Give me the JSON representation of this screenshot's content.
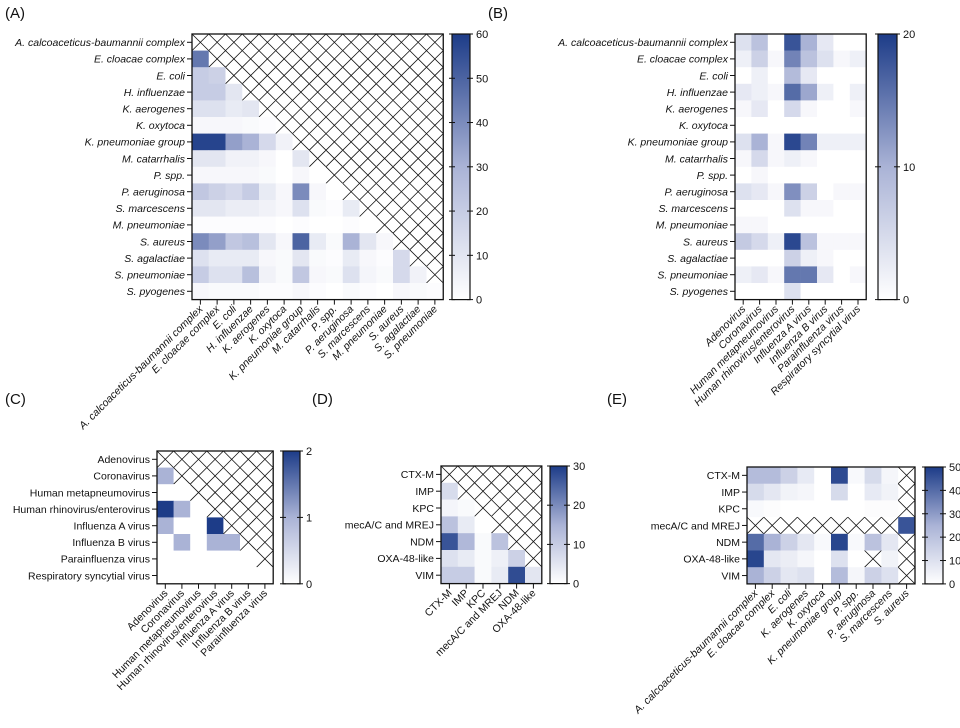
{
  "colormap": [
    "#ffffff",
    "#aab3d6",
    "#1d3c88"
  ],
  "chart_data": [
    {
      "type": "heatmap",
      "title": "(A)",
      "italic_labels": true,
      "rows": [
        "A. calcoaceticus-baumannii complex",
        "E. cloacae complex",
        "E. coli",
        "H. influenzae",
        "K. aerogenes",
        "K. oxytoca",
        "K. pneumoniae group",
        "M. catarrhalis",
        "P. spp.",
        "P. aeruginosa",
        "S. marcescens",
        "M. pneumoniae",
        "S. aureus",
        "S. agalactiae",
        "S. pneumoniae",
        "S. pyogenes"
      ],
      "columns": [
        "A. calcoaceticus-baumannii complex",
        "E. cloacae complex",
        "E. coli",
        "H. influenzae",
        "K. aerogenes",
        "K. oxytoca",
        "K. pneumoniae group",
        "M. catarrhalis",
        "P. spp.",
        "P. aeruginosa",
        "S. marcescens",
        "M. pneumoniae",
        "S. aureus",
        "S. agalactiae",
        "S. pneumoniae"
      ],
      "masked": "upper triangle incl. diagonal (hatched)",
      "values": [
        [],
        [
          45
        ],
        [
          20,
          18
        ],
        [
          20,
          20,
          10
        ],
        [
          12,
          12,
          8,
          10
        ],
        [
          3,
          3,
          3,
          2,
          1
        ],
        [
          58,
          58,
          35,
          30,
          15,
          5
        ],
        [
          10,
          10,
          5,
          5,
          3,
          0,
          10
        ],
        [
          3,
          3,
          3,
          3,
          2,
          0,
          3,
          0
        ],
        [
          22,
          18,
          15,
          20,
          8,
          3,
          40,
          3,
          0
        ],
        [
          10,
          10,
          7,
          7,
          5,
          3,
          12,
          2,
          1,
          8
        ],
        [
          1,
          1,
          1,
          1,
          1,
          0,
          1,
          0,
          0,
          1,
          0
        ],
        [
          40,
          35,
          22,
          25,
          10,
          3,
          50,
          8,
          2,
          30,
          10,
          3
        ],
        [
          12,
          8,
          8,
          8,
          3,
          2,
          10,
          2,
          1,
          8,
          3,
          1,
          15
        ],
        [
          20,
          12,
          12,
          25,
          5,
          2,
          22,
          3,
          2,
          12,
          4,
          2,
          15,
          5
        ],
        [
          3,
          2,
          2,
          2,
          1,
          1,
          3,
          1,
          0,
          2,
          1,
          0,
          3,
          2,
          1
        ]
      ],
      "colorbar": {
        "min": 0,
        "max": 60,
        "ticks": [
          "0",
          "10",
          "20",
          "30",
          "40",
          "50",
          "60"
        ]
      }
    },
    {
      "type": "heatmap",
      "title": "(B)",
      "italic_labels": true,
      "rows": [
        "A. calcoaceticus-baumannii complex",
        "E. cloacae complex",
        "E. coli",
        "H. influenzae",
        "K. aerogenes",
        "K. oxytoca",
        "K. pneumoniae group",
        "M. catarrhalis",
        "P. spp.",
        "P. aeruginosa",
        "S. marcescens",
        "M. pneumoniae",
        "S. aureus",
        "S. agalactiae",
        "S. pneumoniae",
        "S. pyogenes"
      ],
      "columns": [
        "Adenovirus",
        "Coronavirus",
        "Human metapneumovirus",
        "Human rhinovirus/enterovirus",
        "Influenza A virus",
        "Influenza B virus",
        "Parainfluenza virus",
        "Respiratory syncytial virus"
      ],
      "values": [
        [
          4,
          8,
          0,
          18,
          10,
          3,
          0,
          0
        ],
        [
          2,
          6,
          1,
          14,
          8,
          4,
          1,
          2
        ],
        [
          0,
          2,
          0,
          9,
          3,
          0,
          0,
          0
        ],
        [
          3,
          2,
          1,
          16,
          11,
          2,
          0,
          2
        ],
        [
          1,
          3,
          0,
          5,
          1,
          0,
          0,
          1
        ],
        [
          0,
          0,
          0,
          0,
          0,
          0,
          0,
          0
        ],
        [
          4,
          10,
          1,
          19,
          14,
          2,
          2,
          2
        ],
        [
          1,
          5,
          1,
          2,
          1,
          0,
          0,
          0
        ],
        [
          0,
          1,
          0,
          0,
          0,
          0,
          0,
          0
        ],
        [
          4,
          3,
          1,
          13,
          6,
          0,
          1,
          1
        ],
        [
          0,
          0,
          0,
          4,
          1,
          1,
          0,
          0
        ],
        [
          1,
          1,
          0,
          0,
          0,
          0,
          0,
          0
        ],
        [
          7,
          5,
          2,
          19,
          8,
          1,
          1,
          1
        ],
        [
          0,
          0,
          0,
          6,
          2,
          1,
          0,
          0
        ],
        [
          2,
          3,
          1,
          15,
          15,
          3,
          0,
          1
        ],
        [
          0,
          0,
          0,
          4,
          0,
          0,
          0,
          0
        ]
      ],
      "colorbar": {
        "min": 0,
        "max": 20,
        "ticks": [
          "0",
          "10",
          "20"
        ]
      }
    },
    {
      "type": "heatmap",
      "title": "(C)",
      "italic_labels": false,
      "rows": [
        "Adenovirus",
        "Coronavirus",
        "Human metapneumovirus",
        "Human rhinovirus/enterovirus",
        "Influenza A virus",
        "Influenza B virus",
        "Parainfluenza virus",
        "Respiratory syncytial virus"
      ],
      "columns": [
        "Adenovirus",
        "Coronavirus",
        "Human metapneumovirus",
        "Human rhinovirus/enterovirus",
        "Influenza A virus",
        "Influenza B virus",
        "Parainfluenza virus"
      ],
      "masked": "upper triangle incl. diagonal (hatched)",
      "values": [
        [],
        [
          1
        ],
        [
          0,
          0
        ],
        [
          2,
          1,
          0
        ],
        [
          1,
          0,
          0,
          2
        ],
        [
          0,
          1,
          0,
          1,
          1
        ],
        [
          0,
          0,
          0,
          0,
          0,
          0
        ],
        [
          0,
          0,
          0,
          0,
          0,
          0,
          0
        ]
      ],
      "colorbar": {
        "min": 0,
        "max": 2,
        "ticks": [
          "0",
          "1",
          "2"
        ]
      }
    },
    {
      "type": "heatmap",
      "title": "(D)",
      "italic_labels": false,
      "rows": [
        "CTX-M",
        "IMP",
        "KPC",
        "mecA/C and MREJ",
        "NDM",
        "OXA-48-like",
        "VIM"
      ],
      "columns": [
        "CTX-M",
        "IMP",
        "KPC",
        "mecA/C and MREJ",
        "NDM",
        "OXA-48-like"
      ],
      "masked": "upper triangle incl. diagonal (hatched)",
      "values": [
        [],
        [
          7
        ],
        [
          2,
          1
        ],
        [
          12,
          4,
          0
        ],
        [
          27,
          14,
          1,
          12
        ],
        [
          6,
          4,
          1,
          3,
          9
        ],
        [
          10,
          10,
          1,
          4,
          28,
          5
        ]
      ],
      "colorbar": {
        "min": 0,
        "max": 30,
        "ticks": [
          "0",
          "10",
          "20",
          "30"
        ]
      }
    },
    {
      "type": "heatmap",
      "title": "(E)",
      "italic_labels": false,
      "col_italic": true,
      "rows": [
        "CTX-M",
        "IMP",
        "KPC",
        "mecA/C and MREJ",
        "NDM",
        "OXA-48-like",
        "VIM"
      ],
      "columns": [
        "A. calcoaceticus-baumannii complex",
        "E. cloacae complex",
        "E. coli",
        "K. aerogenes",
        "K. oxytoca",
        "K. pneumoniae group",
        "P. spp.",
        "P. aeruginosa",
        "S. marcescens",
        "S. aureus"
      ],
      "values": [
        [
          22,
          22,
          15,
          7,
          0,
          47,
          2,
          12,
          3,
          null
        ],
        [
          12,
          8,
          4,
          3,
          0,
          12,
          0,
          7,
          4,
          null
        ],
        [
          2,
          1,
          0,
          0,
          0,
          0,
          0,
          1,
          1,
          null
        ],
        [
          null,
          null,
          null,
          null,
          null,
          null,
          null,
          null,
          null,
          45
        ],
        [
          40,
          25,
          15,
          8,
          2,
          48,
          2,
          20,
          8,
          null
        ],
        [
          48,
          8,
          6,
          3,
          0,
          10,
          0,
          null,
          4,
          null
        ],
        [
          25,
          15,
          8,
          10,
          0,
          22,
          3,
          15,
          10,
          null
        ]
      ],
      "colorbar": {
        "min": 0,
        "max": 50,
        "ticks": [
          "0",
          "10",
          "20",
          "30",
          "40",
          "50"
        ]
      }
    }
  ]
}
